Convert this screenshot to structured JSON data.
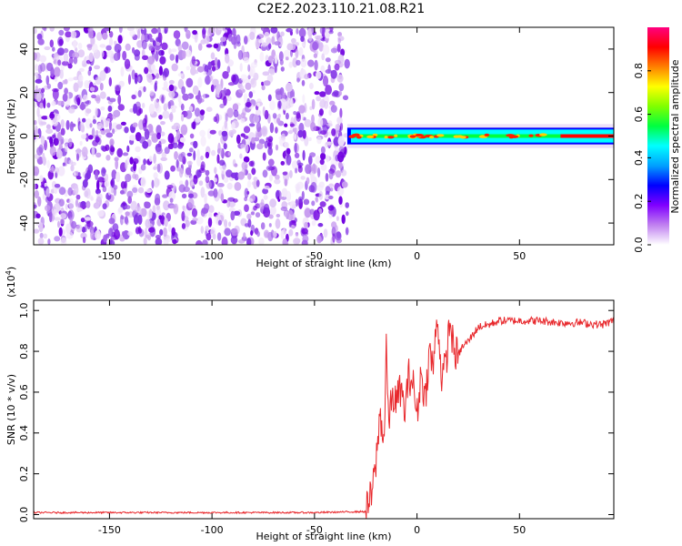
{
  "title": "C2E2.2023.110.21.08.R21",
  "chart_data": [
    {
      "type": "heatmap",
      "xlabel": "Height of straight line (km)",
      "ylabel": "Frequency (Hz)",
      "xlim": [
        -187,
        96
      ],
      "ylim": [
        -50,
        50
      ],
      "xticks": [
        -150,
        -100,
        -50,
        0,
        50
      ],
      "yticks": [
        -40,
        -20,
        0,
        20,
        40
      ],
      "noise_region_x": [
        -187,
        -34
      ],
      "signal_onset_x": -34,
      "signal_band_y": [
        -3,
        3
      ],
      "colorbar": {
        "label": "Normalized spectral amplitude",
        "ticks": [
          0.0,
          0.2,
          0.4,
          0.6,
          0.8
        ],
        "tick_labels": [
          "0.0",
          "0.2",
          "0.4",
          "0.6",
          "0.8"
        ],
        "range": [
          0,
          1
        ],
        "colors": [
          "#ffffff",
          "#c080f0",
          "#8000ff",
          "#0000ff",
          "#00a0ff",
          "#00ffff",
          "#00ff40",
          "#80ff00",
          "#ffff00",
          "#ff8000",
          "#ff0000",
          "#ff0080"
        ]
      }
    },
    {
      "type": "line",
      "xlabel": "Height of straight line (km)",
      "ylabel": "SNR (10 * v/v)",
      "ylabel_multiplier": "(x10",
      "ylabel_exponent": "4",
      "ylabel_close": ")",
      "xlim": [
        -187,
        96
      ],
      "ylim": [
        -0.02,
        1.05
      ],
      "xticks": [
        -150,
        -100,
        -50,
        0,
        50
      ],
      "yticks": [
        0.0,
        0.2,
        0.4,
        0.6,
        0.8,
        1.0
      ],
      "ytick_labels": [
        "0.0",
        "0.2",
        "0.4",
        "0.6",
        "0.8",
        "1.0"
      ],
      "series": [
        {
          "color": "#e8282c",
          "x": [
            -187,
            -150,
            -100,
            -50,
            -25,
            -22,
            -20,
            -18,
            -16,
            -15,
            -14,
            -12,
            -10,
            -8,
            -6,
            -4,
            -2,
            0,
            2,
            4,
            6,
            8,
            10,
            11,
            12,
            14,
            16,
            18,
            20,
            22,
            25,
            30,
            35,
            40,
            50,
            60,
            70,
            80,
            90,
            96
          ],
          "y": [
            0.01,
            0.01,
            0.01,
            0.01,
            0.015,
            0.1,
            0.25,
            0.5,
            0.35,
            0.85,
            0.45,
            0.58,
            0.55,
            0.62,
            0.5,
            0.68,
            0.65,
            0.48,
            0.7,
            0.56,
            0.8,
            0.72,
            1.0,
            0.8,
            0.68,
            0.72,
            0.95,
            0.8,
            0.78,
            0.82,
            0.85,
            0.92,
            0.93,
            0.95,
            0.95,
            0.95,
            0.94,
            0.94,
            0.93,
            0.95
          ]
        }
      ]
    }
  ]
}
